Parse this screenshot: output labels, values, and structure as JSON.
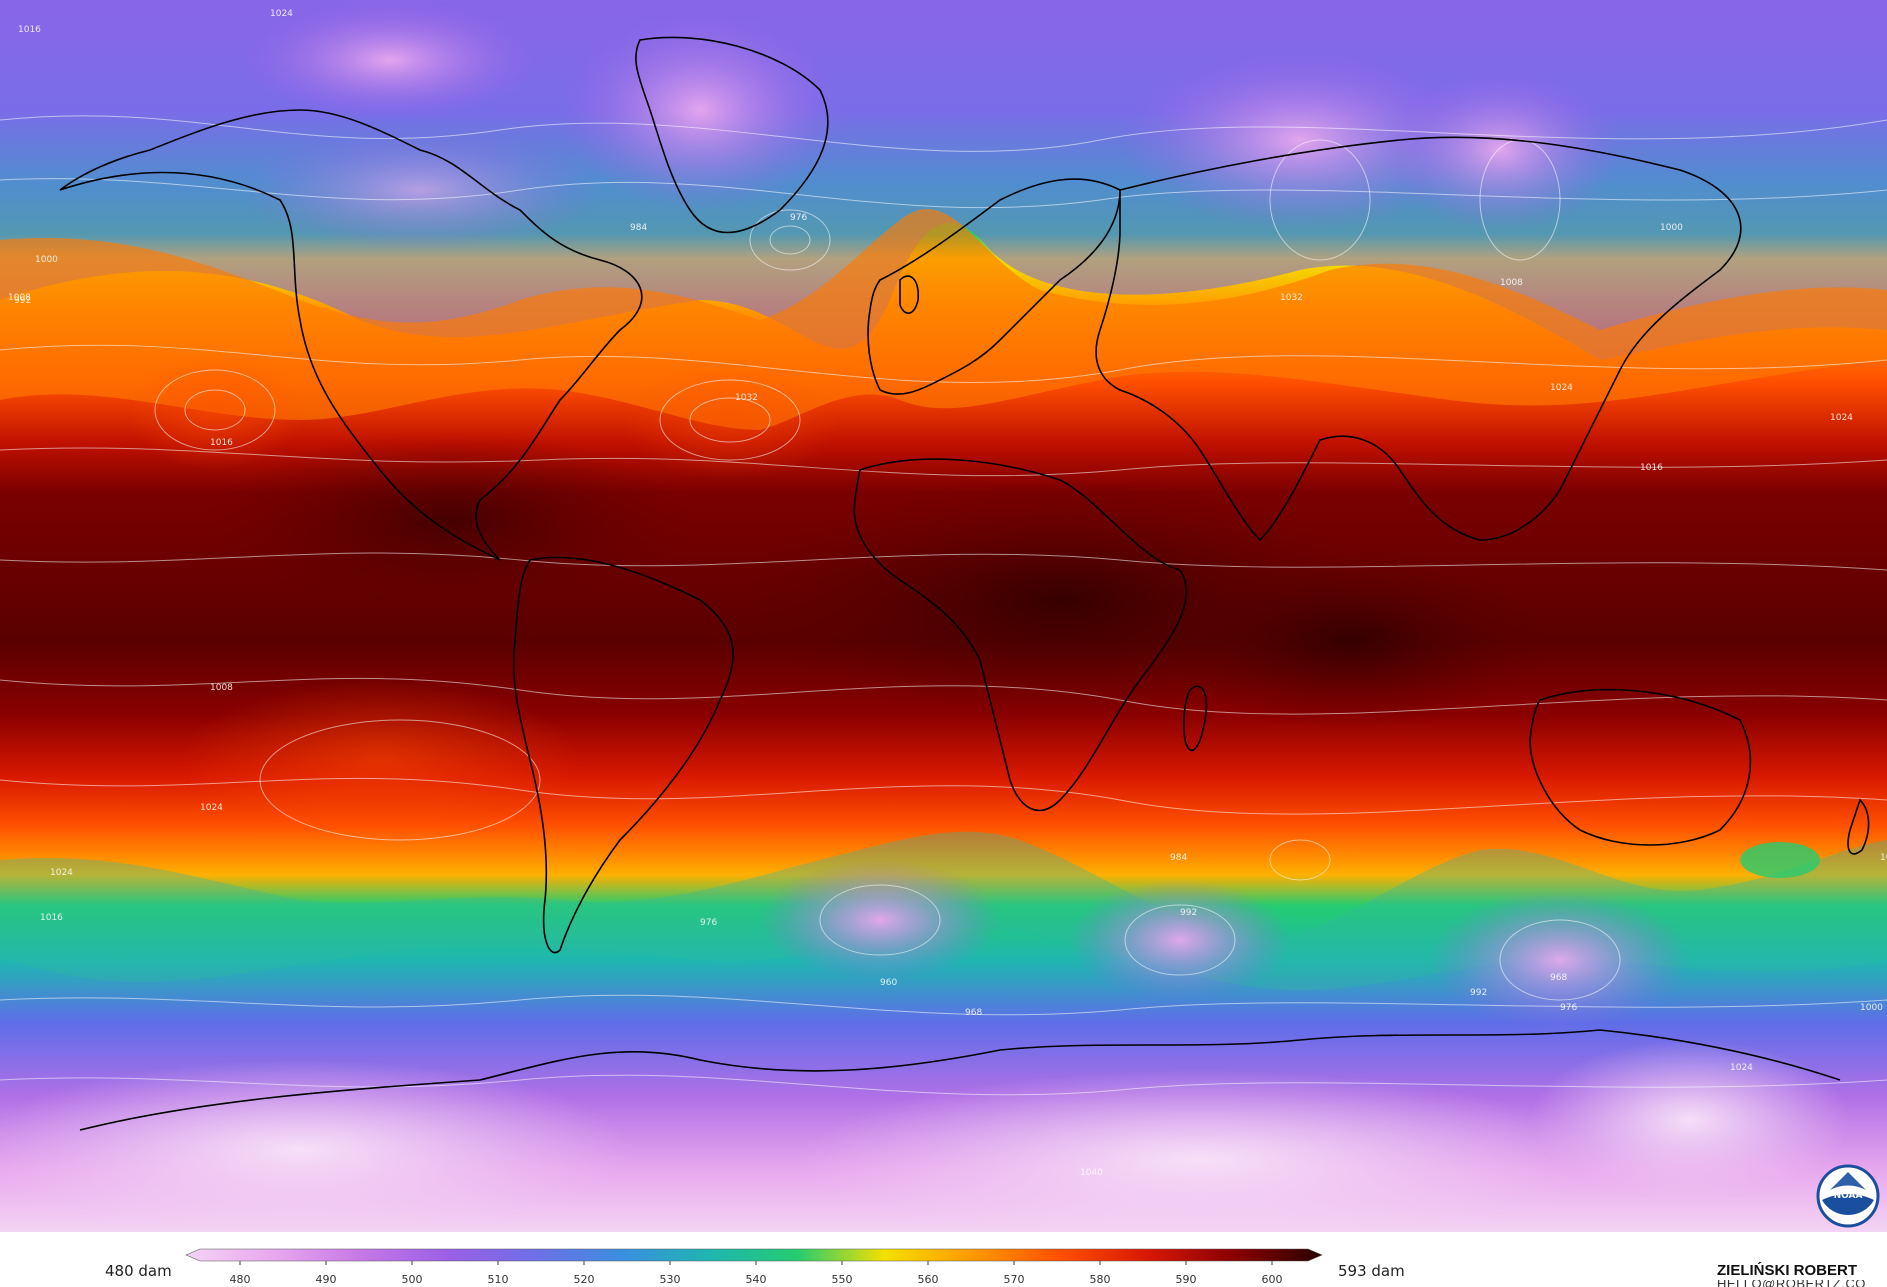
{
  "legend": {
    "min_label": "480 dam",
    "max_label": "593 dam",
    "ticks": [
      "480",
      "490",
      "500",
      "510",
      "520",
      "530",
      "540",
      "550",
      "560",
      "570",
      "580",
      "590",
      "600"
    ],
    "colors": [
      "#f4d4f4",
      "#e8a8ee",
      "#c678e6",
      "#9b5fe6",
      "#6f6fe8",
      "#3a8fe0",
      "#1fb6b0",
      "#25cc70",
      "#f4e000",
      "#ff9a00",
      "#ff5000",
      "#d81800",
      "#8a0000",
      "#2a0000"
    ]
  },
  "credit": {
    "name": "ZIELIŃSKI ROBERT",
    "email": "HELLO@ROBERTZ.CO"
  },
  "contour_labels": [
    "1024",
    "1016",
    "1008",
    "1000",
    "992",
    "984",
    "976",
    "1032",
    "1024",
    "1000",
    "1016",
    "1008",
    "1024",
    "1032",
    "1016",
    "1008",
    "1024",
    "1016",
    "1024",
    "976",
    "968",
    "960",
    "984",
    "992",
    "968",
    "976",
    "1000",
    "992",
    "1024",
    "1016",
    "1040",
    "1008"
  ],
  "logo": {
    "icon": "noaa-logo",
    "text": "NOAA"
  }
}
